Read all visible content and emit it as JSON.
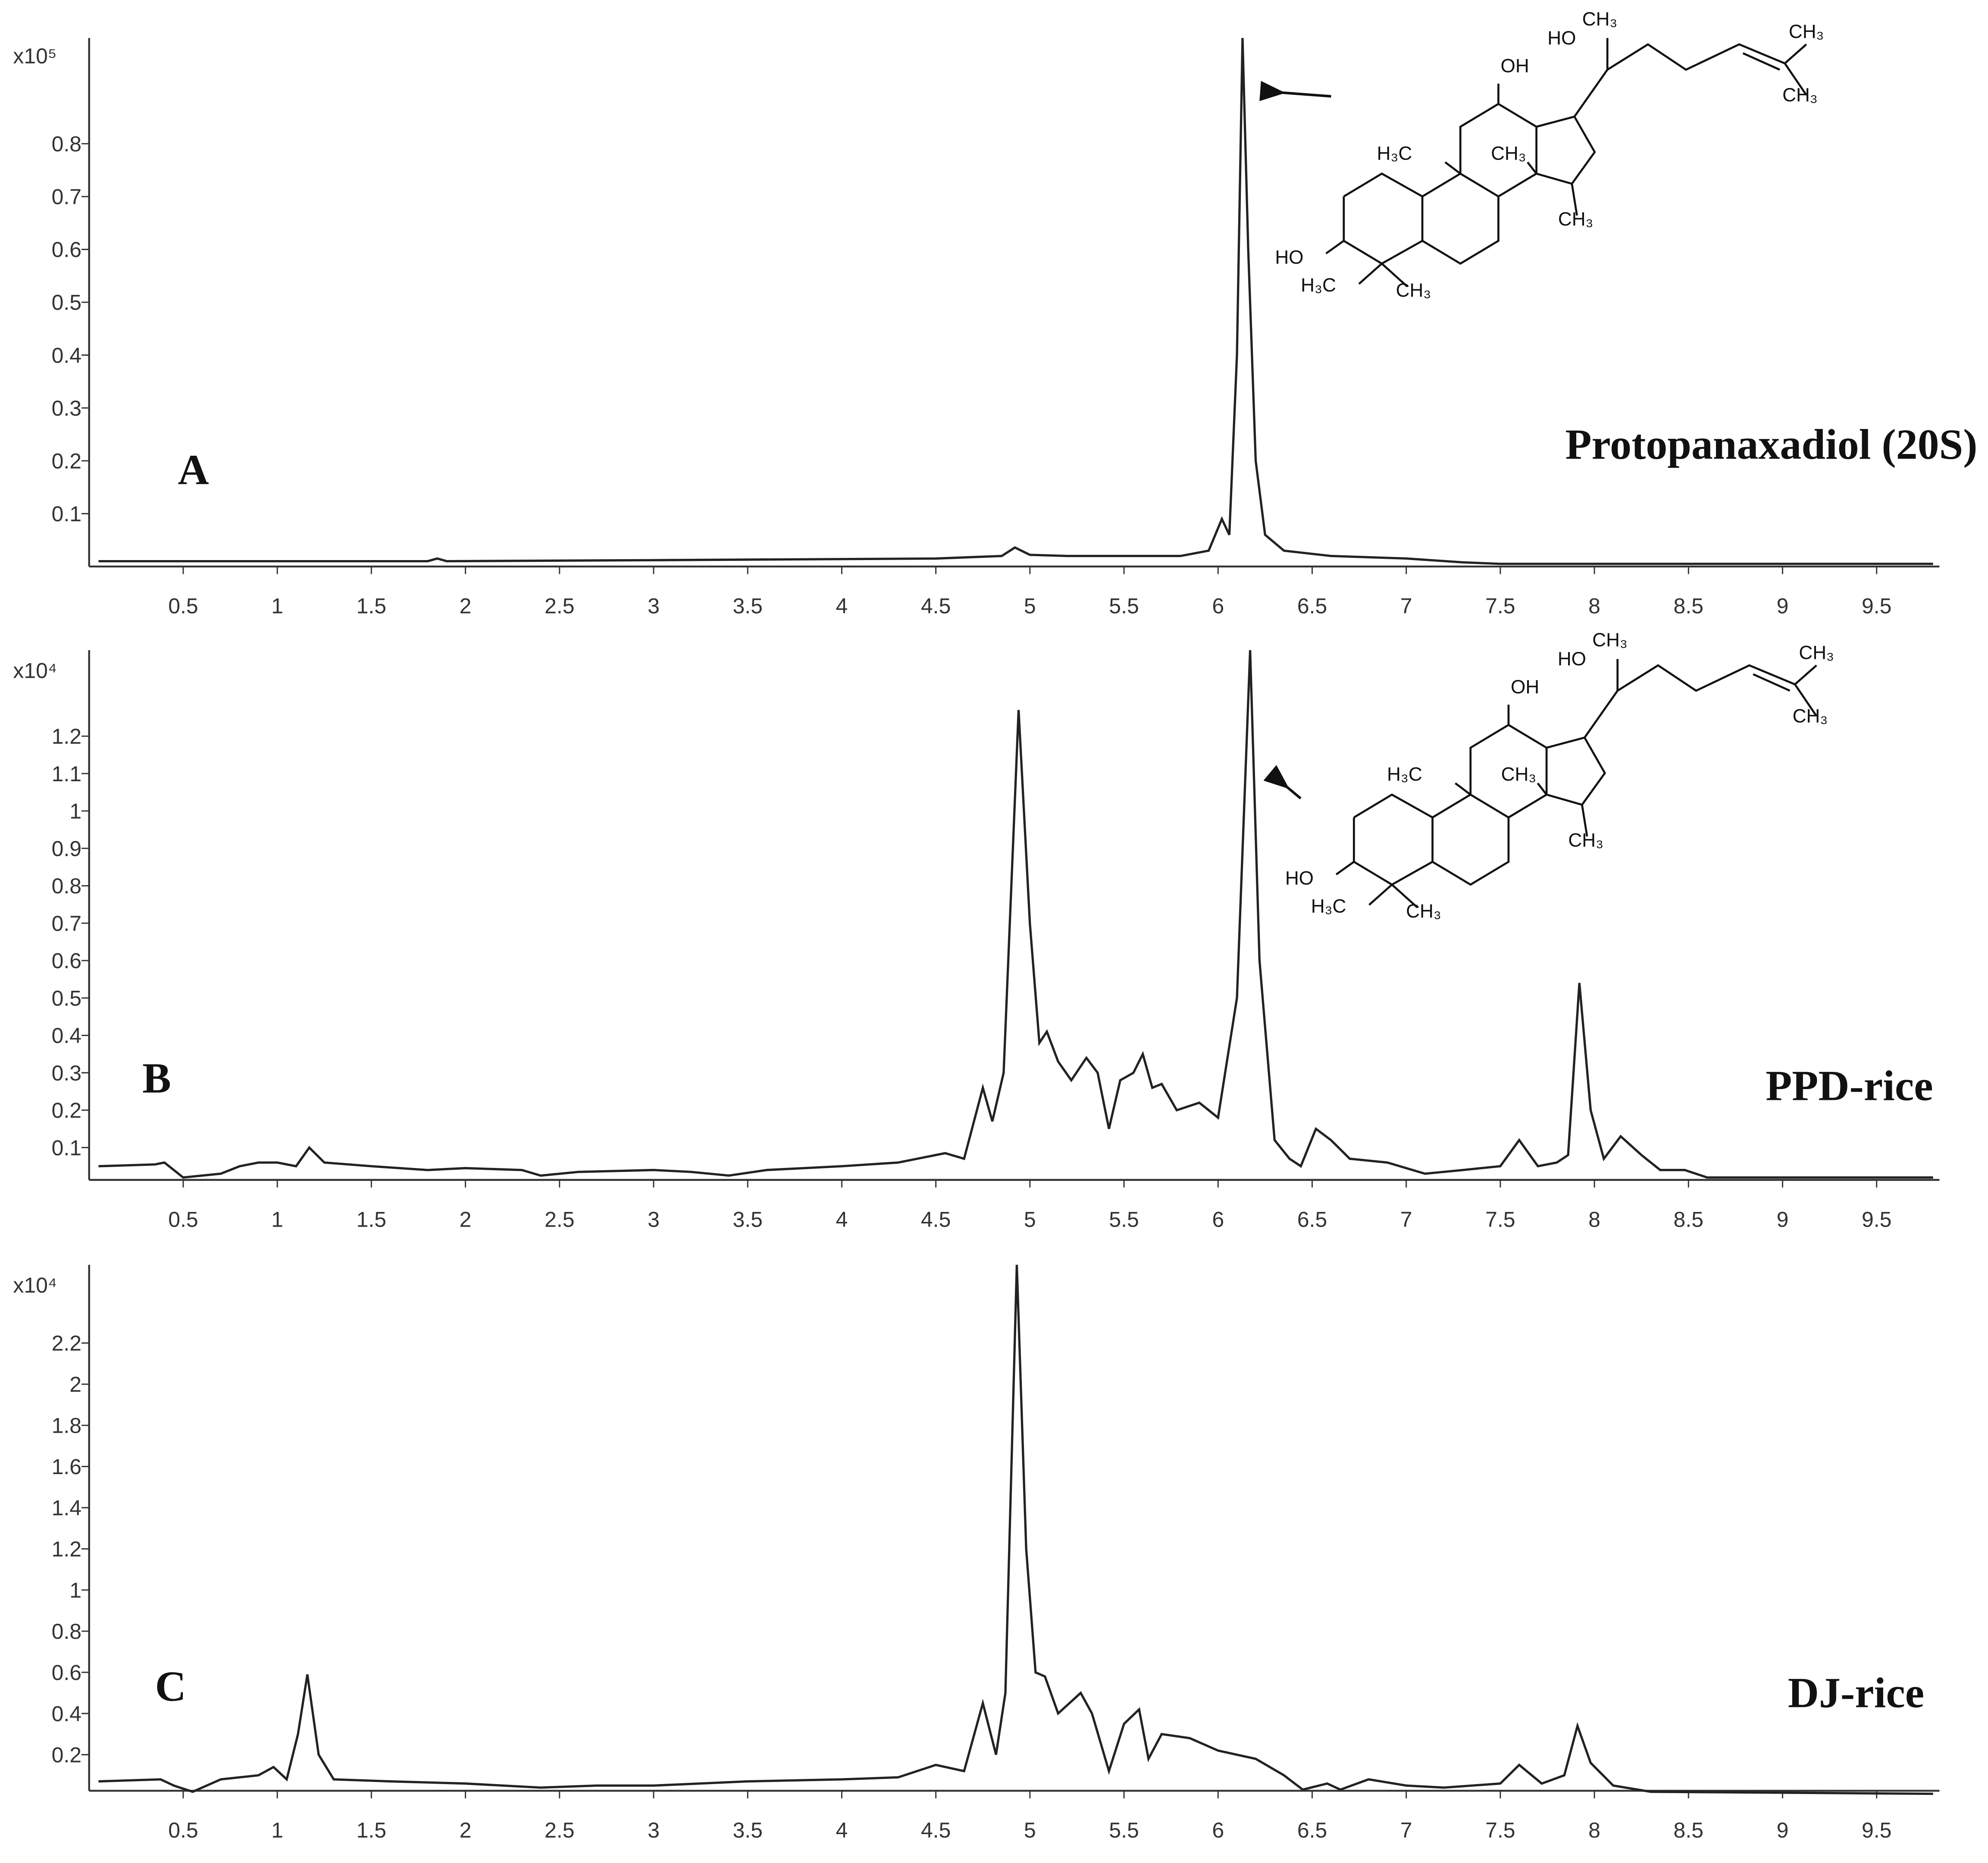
{
  "chart_data": [
    {
      "type": "line",
      "panel_label": "A",
      "title": "Protopanaxadiol (20S)",
      "y_scale_label": "x10⁵",
      "color": "#222222",
      "x": [
        0.05,
        1.8,
        1.85,
        1.9,
        3,
        4.5,
        4.85,
        4.92,
        5.0,
        5.2,
        5.8,
        5.95,
        6.02,
        6.06,
        6.1,
        6.13,
        6.16,
        6.2,
        6.25,
        6.35,
        6.6,
        7.0,
        7.3,
        7.5,
        9.8
      ],
      "values": [
        0.01,
        0.01,
        0.015,
        0.01,
        0.012,
        0.015,
        0.02,
        0.036,
        0.022,
        0.02,
        0.02,
        0.03,
        0.09,
        0.06,
        0.4,
        1.0,
        0.6,
        0.2,
        0.06,
        0.03,
        0.02,
        0.015,
        0.008,
        0.005,
        0.005
      ],
      "xlim": [
        0,
        9.8
      ],
      "xticks": [
        0.5,
        1,
        1.5,
        2,
        2.5,
        3,
        3.5,
        4,
        4.5,
        5,
        5.5,
        6,
        6.5,
        7,
        7.5,
        8,
        8.5,
        9,
        9.5
      ],
      "ylim": [
        0,
        1.0
      ],
      "yticks": [
        0.1,
        0.2,
        0.3,
        0.4,
        0.5,
        0.6,
        0.7,
        0.8
      ],
      "structure_labels": [
        "HO",
        "CH₃",
        "CH₃",
        "CH₃",
        "OH",
        "H₃C",
        "CH₃",
        "CH₃",
        "HO",
        "H₃C",
        "CH₃"
      ]
    },
    {
      "type": "line",
      "panel_label": "B",
      "title": "PPD-rice",
      "y_scale_label": "x10⁴",
      "color": "#222222",
      "x": [
        0.05,
        0.35,
        0.4,
        0.45,
        0.5,
        0.7,
        0.8,
        0.9,
        1.0,
        1.1,
        1.17,
        1.25,
        1.5,
        1.8,
        2.0,
        2.3,
        2.4,
        2.6,
        3.0,
        3.2,
        3.4,
        3.6,
        4.0,
        4.3,
        4.55,
        4.65,
        4.75,
        4.8,
        4.86,
        4.94,
        5.0,
        5.05,
        5.09,
        5.15,
        5.22,
        5.3,
        5.36,
        5.42,
        5.48,
        5.55,
        5.6,
        5.65,
        5.7,
        5.78,
        5.9,
        6.0,
        6.1,
        6.17,
        6.22,
        6.3,
        6.38,
        6.44,
        6.52,
        6.6,
        6.7,
        6.9,
        7.1,
        7.3,
        7.5,
        7.6,
        7.7,
        7.8,
        7.86,
        7.92,
        7.98,
        8.05,
        8.14,
        8.25,
        8.35,
        8.48,
        8.6,
        9.8
      ],
      "values": [
        0.05,
        0.055,
        0.06,
        0.04,
        0.02,
        0.03,
        0.05,
        0.06,
        0.06,
        0.05,
        0.1,
        0.06,
        0.05,
        0.04,
        0.045,
        0.04,
        0.025,
        0.035,
        0.04,
        0.035,
        0.025,
        0.04,
        0.05,
        0.06,
        0.085,
        0.07,
        0.26,
        0.17,
        0.3,
        1.27,
        0.7,
        0.38,
        0.41,
        0.33,
        0.28,
        0.34,
        0.3,
        0.15,
        0.28,
        0.3,
        0.35,
        0.26,
        0.27,
        0.2,
        0.22,
        0.18,
        0.5,
        1.43,
        0.6,
        0.12,
        0.07,
        0.05,
        0.15,
        0.12,
        0.07,
        0.06,
        0.03,
        0.04,
        0.05,
        0.12,
        0.05,
        0.06,
        0.08,
        0.54,
        0.2,
        0.07,
        0.13,
        0.08,
        0.04,
        0.04,
        0.02,
        0.02
      ],
      "xlim": [
        0,
        9.8
      ],
      "xticks": [
        0.5,
        1,
        1.5,
        2,
        2.5,
        3,
        3.5,
        4,
        4.5,
        5,
        5.5,
        6,
        6.5,
        7,
        7.5,
        8,
        8.5,
        9,
        9.5
      ],
      "ylim": [
        0,
        1.43
      ],
      "yticks": [
        0.1,
        0.2,
        0.3,
        0.4,
        0.5,
        0.6,
        0.7,
        0.8,
        0.9,
        1,
        1.1,
        1.2
      ],
      "structure_labels": [
        "HO",
        "CH₃",
        "CH₃",
        "CH₃",
        "OH",
        "H₃C",
        "CH₃",
        "CH₃",
        "HO",
        "H₃C",
        "CH₃"
      ]
    },
    {
      "type": "line",
      "panel_label": "C",
      "title": "DJ-rice",
      "y_scale_label": "x10⁴",
      "color": "#222222",
      "x": [
        0.05,
        0.38,
        0.45,
        0.55,
        0.7,
        0.9,
        0.98,
        1.05,
        1.11,
        1.16,
        1.22,
        1.3,
        1.6,
        2.0,
        2.4,
        2.7,
        3.0,
        3.5,
        4.0,
        4.3,
        4.5,
        4.65,
        4.75,
        4.82,
        4.87,
        4.93,
        4.98,
        5.03,
        5.08,
        5.15,
        5.27,
        5.33,
        5.42,
        5.5,
        5.58,
        5.63,
        5.7,
        5.85,
        6.0,
        6.2,
        6.35,
        6.45,
        6.58,
        6.65,
        6.8,
        7.0,
        7.2,
        7.5,
        7.6,
        7.72,
        7.84,
        7.91,
        7.98,
        8.1,
        8.3,
        9.8
      ],
      "values": [
        0.07,
        0.08,
        0.05,
        0.02,
        0.08,
        0.1,
        0.14,
        0.08,
        0.3,
        0.59,
        0.2,
        0.08,
        0.07,
        0.06,
        0.04,
        0.05,
        0.05,
        0.07,
        0.08,
        0.09,
        0.15,
        0.12,
        0.45,
        0.2,
        0.5,
        2.58,
        1.2,
        0.6,
        0.58,
        0.4,
        0.5,
        0.4,
        0.12,
        0.35,
        0.42,
        0.18,
        0.3,
        0.28,
        0.22,
        0.18,
        0.1,
        0.03,
        0.06,
        0.03,
        0.08,
        0.05,
        0.04,
        0.06,
        0.15,
        0.06,
        0.1,
        0.34,
        0.16,
        0.05,
        0.02,
        0.01
      ],
      "xlim": [
        0,
        9.8
      ],
      "xticks": [
        0.5,
        1,
        1.5,
        2,
        2.5,
        3,
        3.5,
        4,
        4.5,
        5,
        5.5,
        6,
        6.5,
        7,
        7.5,
        8,
        8.5,
        9,
        9.5
      ],
      "ylim": [
        0,
        2.58
      ],
      "yticks": [
        0.2,
        0.4,
        0.6,
        0.8,
        1,
        1.2,
        1.4,
        1.6,
        1.8,
        2,
        2.2
      ]
    }
  ]
}
